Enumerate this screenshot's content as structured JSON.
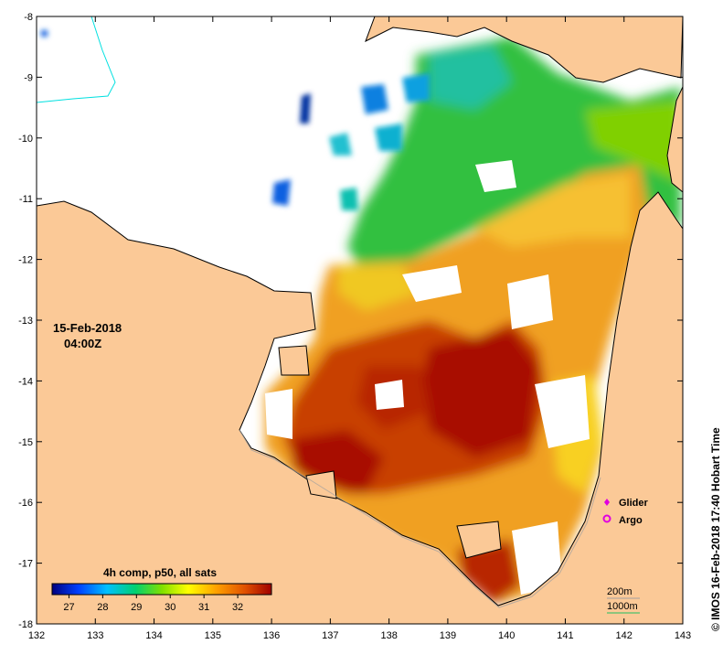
{
  "map": {
    "date_label": "15-Feb-2018",
    "time_label": "04:00Z",
    "credit": "© IMOS 16-Feb-2018 17:40 Hobart Time",
    "colorbar": {
      "title": "4h comp, p50, all sats",
      "tick_values": [
        "27",
        "28",
        "29",
        "30",
        "31",
        "32"
      ]
    },
    "legend": {
      "items": [
        {
          "label": "Glider",
          "symbol": "magenta-diamond",
          "color": "#e000e0"
        },
        {
          "label": "Argo",
          "symbol": "magenta-ring",
          "color": "#e000e0"
        }
      ]
    },
    "contours": {
      "items": [
        {
          "label": "200m",
          "color": "#a0a0a0"
        },
        {
          "label": "1000m",
          "color": "#20c060"
        }
      ]
    },
    "colors": {
      "land": "#fbc997",
      "cloud": "#ffffff",
      "coastline": "#000000"
    }
  },
  "chart_data": {
    "type": "heatmap",
    "x_ticks": [
      "132",
      "133",
      "134",
      "135",
      "136",
      "137",
      "138",
      "139",
      "140",
      "141",
      "142",
      "143"
    ],
    "y_ticks": [
      "-8",
      "-9",
      "-10",
      "-11",
      "-12",
      "-13",
      "-14",
      "-15",
      "-16",
      "-17",
      "-18"
    ],
    "xlim": [
      132,
      143
    ],
    "ylim": [
      -18,
      -8
    ],
    "value_range": [
      26.5,
      33
    ]
  }
}
